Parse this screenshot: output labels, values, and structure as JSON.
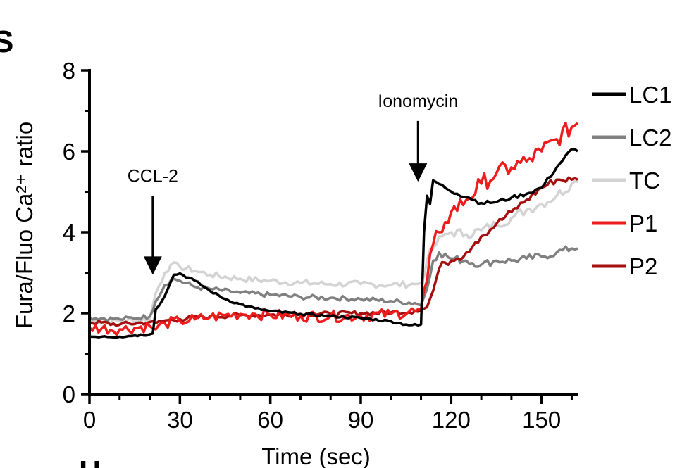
{
  "chart_data": {
    "type": "line",
    "title": "",
    "xlabel": "Time (sec)",
    "ylabel": "Fura/Fluo Ca²⁺ ratio",
    "xlim": [
      0,
      162
    ],
    "ylim": [
      0,
      8
    ],
    "x_ticks": [
      0,
      30,
      60,
      90,
      120,
      150
    ],
    "y_ticks": [
      0,
      2,
      4,
      6,
      8
    ],
    "legend_position": "right",
    "grid": false,
    "annotations": [
      {
        "text": "CCL-2",
        "x": 21,
        "arrow_top_y": 4.9,
        "arrow_tip_y": 2.95
      },
      {
        "text": "Ionomycin",
        "x": 109,
        "arrow_top_y": 6.75,
        "arrow_tip_y": 5.25
      }
    ],
    "series": [
      {
        "name": "LC1",
        "color": "#000000",
        "points": [
          [
            0,
            1.42
          ],
          [
            5,
            1.43
          ],
          [
            10,
            1.42
          ],
          [
            15,
            1.45
          ],
          [
            20,
            1.48
          ],
          [
            21,
            1.5
          ],
          [
            22,
            2.1
          ],
          [
            24,
            2.3
          ],
          [
            26,
            2.6
          ],
          [
            28,
            2.95
          ],
          [
            30,
            2.98
          ],
          [
            35,
            2.8
          ],
          [
            40,
            2.55
          ],
          [
            45,
            2.35
          ],
          [
            50,
            2.22
          ],
          [
            55,
            2.12
          ],
          [
            60,
            2.05
          ],
          [
            70,
            1.98
          ],
          [
            80,
            1.93
          ],
          [
            90,
            1.88
          ],
          [
            100,
            1.8
          ],
          [
            105,
            1.72
          ],
          [
            109,
            1.7
          ],
          [
            110,
            1.72
          ],
          [
            111,
            4.0
          ],
          [
            112,
            4.9
          ],
          [
            113,
            4.7
          ],
          [
            114,
            5.28
          ],
          [
            118,
            5.1
          ],
          [
            122,
            4.95
          ],
          [
            126,
            4.85
          ],
          [
            130,
            4.72
          ],
          [
            135,
            4.75
          ],
          [
            140,
            4.85
          ],
          [
            145,
            4.95
          ],
          [
            150,
            5.1
          ],
          [
            155,
            5.6
          ],
          [
            160,
            6.05
          ],
          [
            162,
            6.0
          ]
        ]
      },
      {
        "name": "LC2",
        "color": "#808080",
        "points": [
          [
            0,
            1.9
          ],
          [
            10,
            1.85
          ],
          [
            20,
            1.92
          ],
          [
            22,
            2.3
          ],
          [
            25,
            2.7
          ],
          [
            28,
            2.85
          ],
          [
            30,
            2.8
          ],
          [
            35,
            2.65
          ],
          [
            40,
            2.6
          ],
          [
            50,
            2.5
          ],
          [
            60,
            2.45
          ],
          [
            70,
            2.4
          ],
          [
            80,
            2.38
          ],
          [
            90,
            2.35
          ],
          [
            100,
            2.3
          ],
          [
            108,
            2.25
          ],
          [
            110,
            2.2
          ],
          [
            112,
            2.6
          ],
          [
            114,
            3.3
          ],
          [
            116,
            3.5
          ],
          [
            120,
            3.35
          ],
          [
            125,
            3.3
          ],
          [
            130,
            3.2
          ],
          [
            135,
            3.3
          ],
          [
            140,
            3.3
          ],
          [
            145,
            3.35
          ],
          [
            150,
            3.4
          ],
          [
            155,
            3.5
          ],
          [
            160,
            3.6
          ],
          [
            162,
            3.6
          ]
        ]
      },
      {
        "name": "TC",
        "color": "#d3d3d3",
        "points": [
          [
            0,
            1.82
          ],
          [
            10,
            1.8
          ],
          [
            20,
            1.85
          ],
          [
            22,
            2.5
          ],
          [
            25,
            3.0
          ],
          [
            27,
            3.2
          ],
          [
            30,
            3.15
          ],
          [
            35,
            3.05
          ],
          [
            40,
            2.95
          ],
          [
            50,
            2.85
          ],
          [
            60,
            2.8
          ],
          [
            70,
            2.75
          ],
          [
            80,
            2.72
          ],
          [
            90,
            2.72
          ],
          [
            100,
            2.7
          ],
          [
            108,
            2.72
          ],
          [
            110,
            2.75
          ],
          [
            112,
            3.3
          ],
          [
            114,
            3.6
          ],
          [
            117,
            3.9
          ],
          [
            120,
            4.0
          ],
          [
            125,
            3.95
          ],
          [
            130,
            4.05
          ],
          [
            135,
            4.2
          ],
          [
            140,
            4.35
          ],
          [
            145,
            4.55
          ],
          [
            150,
            4.7
          ],
          [
            155,
            4.9
          ],
          [
            160,
            5.2
          ],
          [
            162,
            5.25
          ]
        ]
      },
      {
        "name": "P1",
        "color": "#ee1c1c",
        "points": [
          [
            0,
            1.65
          ],
          [
            10,
            1.6
          ],
          [
            20,
            1.68
          ],
          [
            22,
            1.6
          ],
          [
            25,
            1.75
          ],
          [
            30,
            1.8
          ],
          [
            35,
            1.85
          ],
          [
            40,
            1.9
          ],
          [
            45,
            1.95
          ],
          [
            50,
            1.98
          ],
          [
            55,
            1.98
          ],
          [
            60,
            1.96
          ],
          [
            70,
            1.93
          ],
          [
            80,
            1.92
          ],
          [
            90,
            1.93
          ],
          [
            100,
            1.98
          ],
          [
            108,
            2.05
          ],
          [
            110,
            2.1
          ],
          [
            112,
            2.8
          ],
          [
            114,
            3.7
          ],
          [
            116,
            4.0
          ],
          [
            118,
            4.25
          ],
          [
            120,
            4.5
          ],
          [
            125,
            4.8
          ],
          [
            130,
            5.2
          ],
          [
            135,
            5.45
          ],
          [
            140,
            5.6
          ],
          [
            145,
            5.75
          ],
          [
            150,
            6.0
          ],
          [
            155,
            6.3
          ],
          [
            160,
            6.6
          ],
          [
            162,
            6.7
          ]
        ]
      },
      {
        "name": "P2",
        "color": "#a50f0f",
        "points": [
          [
            0,
            1.78
          ],
          [
            10,
            1.72
          ],
          [
            20,
            1.78
          ],
          [
            22,
            1.75
          ],
          [
            25,
            1.82
          ],
          [
            30,
            1.85
          ],
          [
            40,
            1.92
          ],
          [
            50,
            1.95
          ],
          [
            60,
            1.96
          ],
          [
            70,
            1.98
          ],
          [
            80,
            1.98
          ],
          [
            90,
            2.0
          ],
          [
            100,
            2.02
          ],
          [
            108,
            2.05
          ],
          [
            110,
            2.08
          ],
          [
            112,
            2.15
          ],
          [
            114,
            2.55
          ],
          [
            116,
            3.1
          ],
          [
            118,
            3.25
          ],
          [
            120,
            3.3
          ],
          [
            122,
            3.35
          ],
          [
            125,
            3.5
          ],
          [
            128,
            3.75
          ],
          [
            130,
            3.9
          ],
          [
            135,
            4.2
          ],
          [
            140,
            4.5
          ],
          [
            145,
            4.8
          ],
          [
            150,
            5.1
          ],
          [
            155,
            5.3
          ],
          [
            160,
            5.3
          ],
          [
            162,
            5.3
          ]
        ]
      }
    ]
  },
  "page": {
    "panel_top_letter": "S",
    "panel_bottom_letter": "H"
  }
}
